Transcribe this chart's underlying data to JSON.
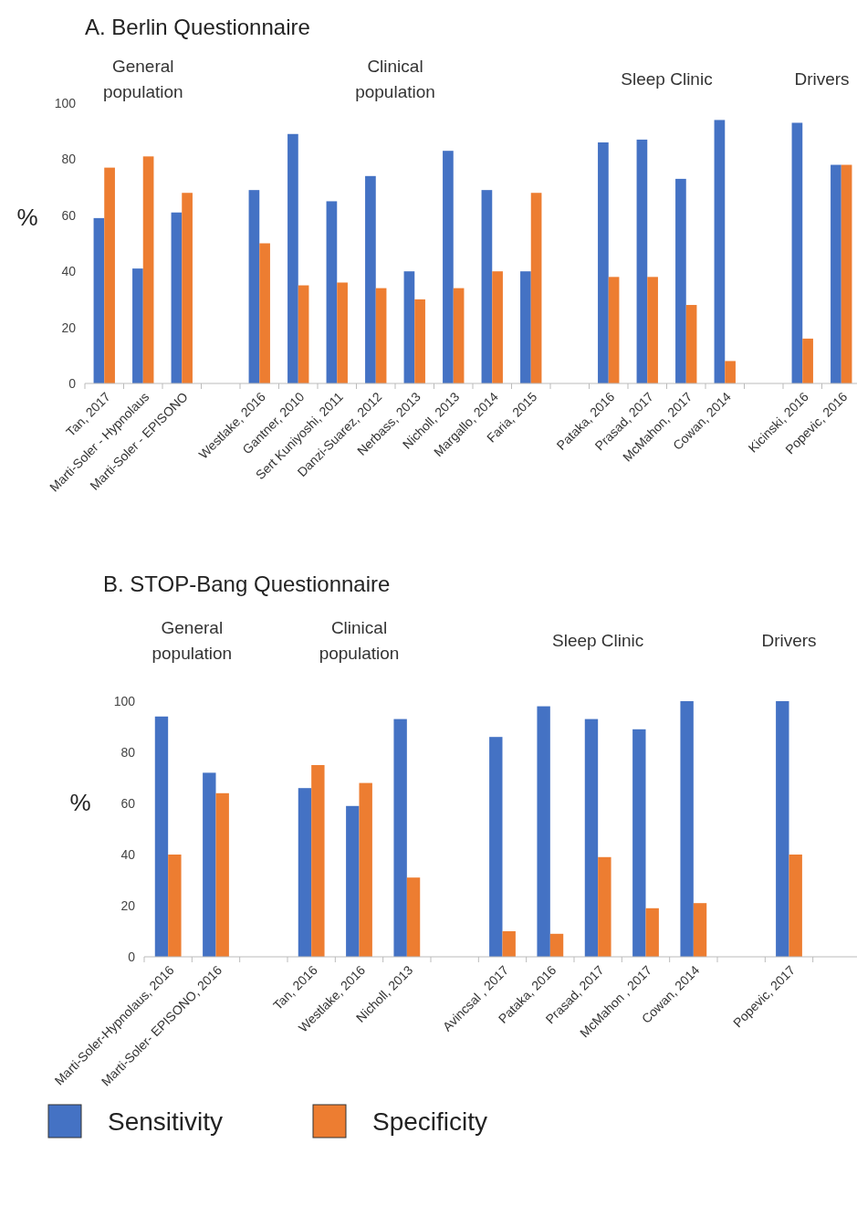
{
  "chart_data": [
    {
      "type": "bar",
      "title": "A. Berlin Questionnaire",
      "ylabel": "%",
      "categories": [
        "Tan, 2017",
        "Marti-Soler - Hypnolaus",
        "Marti-Soler - EPISONO",
        null,
        "Westlake, 2016",
        "Gantner, 2010",
        "Sert Kuniyoshi, 2011",
        "Danzi-Suarez, 2012",
        "Nerbass, 2013",
        "Nicholl, 2013",
        "Margallo, 2014",
        "Faria, 2015",
        null,
        "Pataka, 2016",
        "Prasad, 2017",
        "McMahon, 2017",
        "Cowan, 2014",
        null,
        "Kicinski, 2016",
        "Popevic, 2016"
      ],
      "series": [
        {
          "color": "#4472c4",
          "values": [
            59,
            41,
            61,
            null,
            69,
            89,
            65,
            74,
            40,
            83,
            69,
            40,
            null,
            86,
            87,
            73,
            94,
            null,
            93,
            78
          ]
        },
        {
          "color": "#ed7d31",
          "values": [
            77,
            81,
            68,
            null,
            50,
            35,
            36,
            34,
            30,
            34,
            40,
            68,
            null,
            38,
            38,
            28,
            8,
            null,
            16,
            78
          ]
        }
      ],
      "ylim": [
        0,
        100
      ],
      "yticks": [
        0,
        20,
        40,
        60,
        80,
        100
      ],
      "grid": false,
      "legend": false,
      "annotations": [
        "General population",
        "Clinical population",
        "Sleep Clinic",
        "Drivers"
      ]
    },
    {
      "type": "bar",
      "title": "B. STOP-Bang Questionnaire",
      "ylabel": "%",
      "categories": [
        "Marti-Soler-Hypnolaus, 2016",
        "Marti-Soler- EPISONO, 2016",
        null,
        "Tan, 2016",
        "Westlake, 2016",
        "Nicholl, 2013",
        null,
        "Avincsal , 2017",
        "Pataka, 2016",
        "Prasad, 2017",
        "McMahon , 2017",
        "Cowan, 2014",
        null,
        "Popevic, 2017",
        null
      ],
      "series": [
        {
          "name": "Sensitivity",
          "color": "#4472c4",
          "values": [
            94,
            72,
            null,
            66,
            59,
            93,
            null,
            86,
            98,
            93,
            89,
            100,
            null,
            100,
            null
          ]
        },
        {
          "name": "Specificity",
          "color": "#ed7d31",
          "values": [
            40,
            64,
            null,
            75,
            68,
            31,
            null,
            10,
            9,
            39,
            19,
            21,
            null,
            40,
            null
          ]
        }
      ],
      "ylim": [
        0,
        100
      ],
      "yticks": [
        0,
        20,
        40,
        60,
        80,
        100
      ],
      "grid": false,
      "legend": "bottom",
      "annotations": [
        "General population",
        "Clinical population",
        "Sleep Clinic",
        "Drivers"
      ]
    }
  ]
}
